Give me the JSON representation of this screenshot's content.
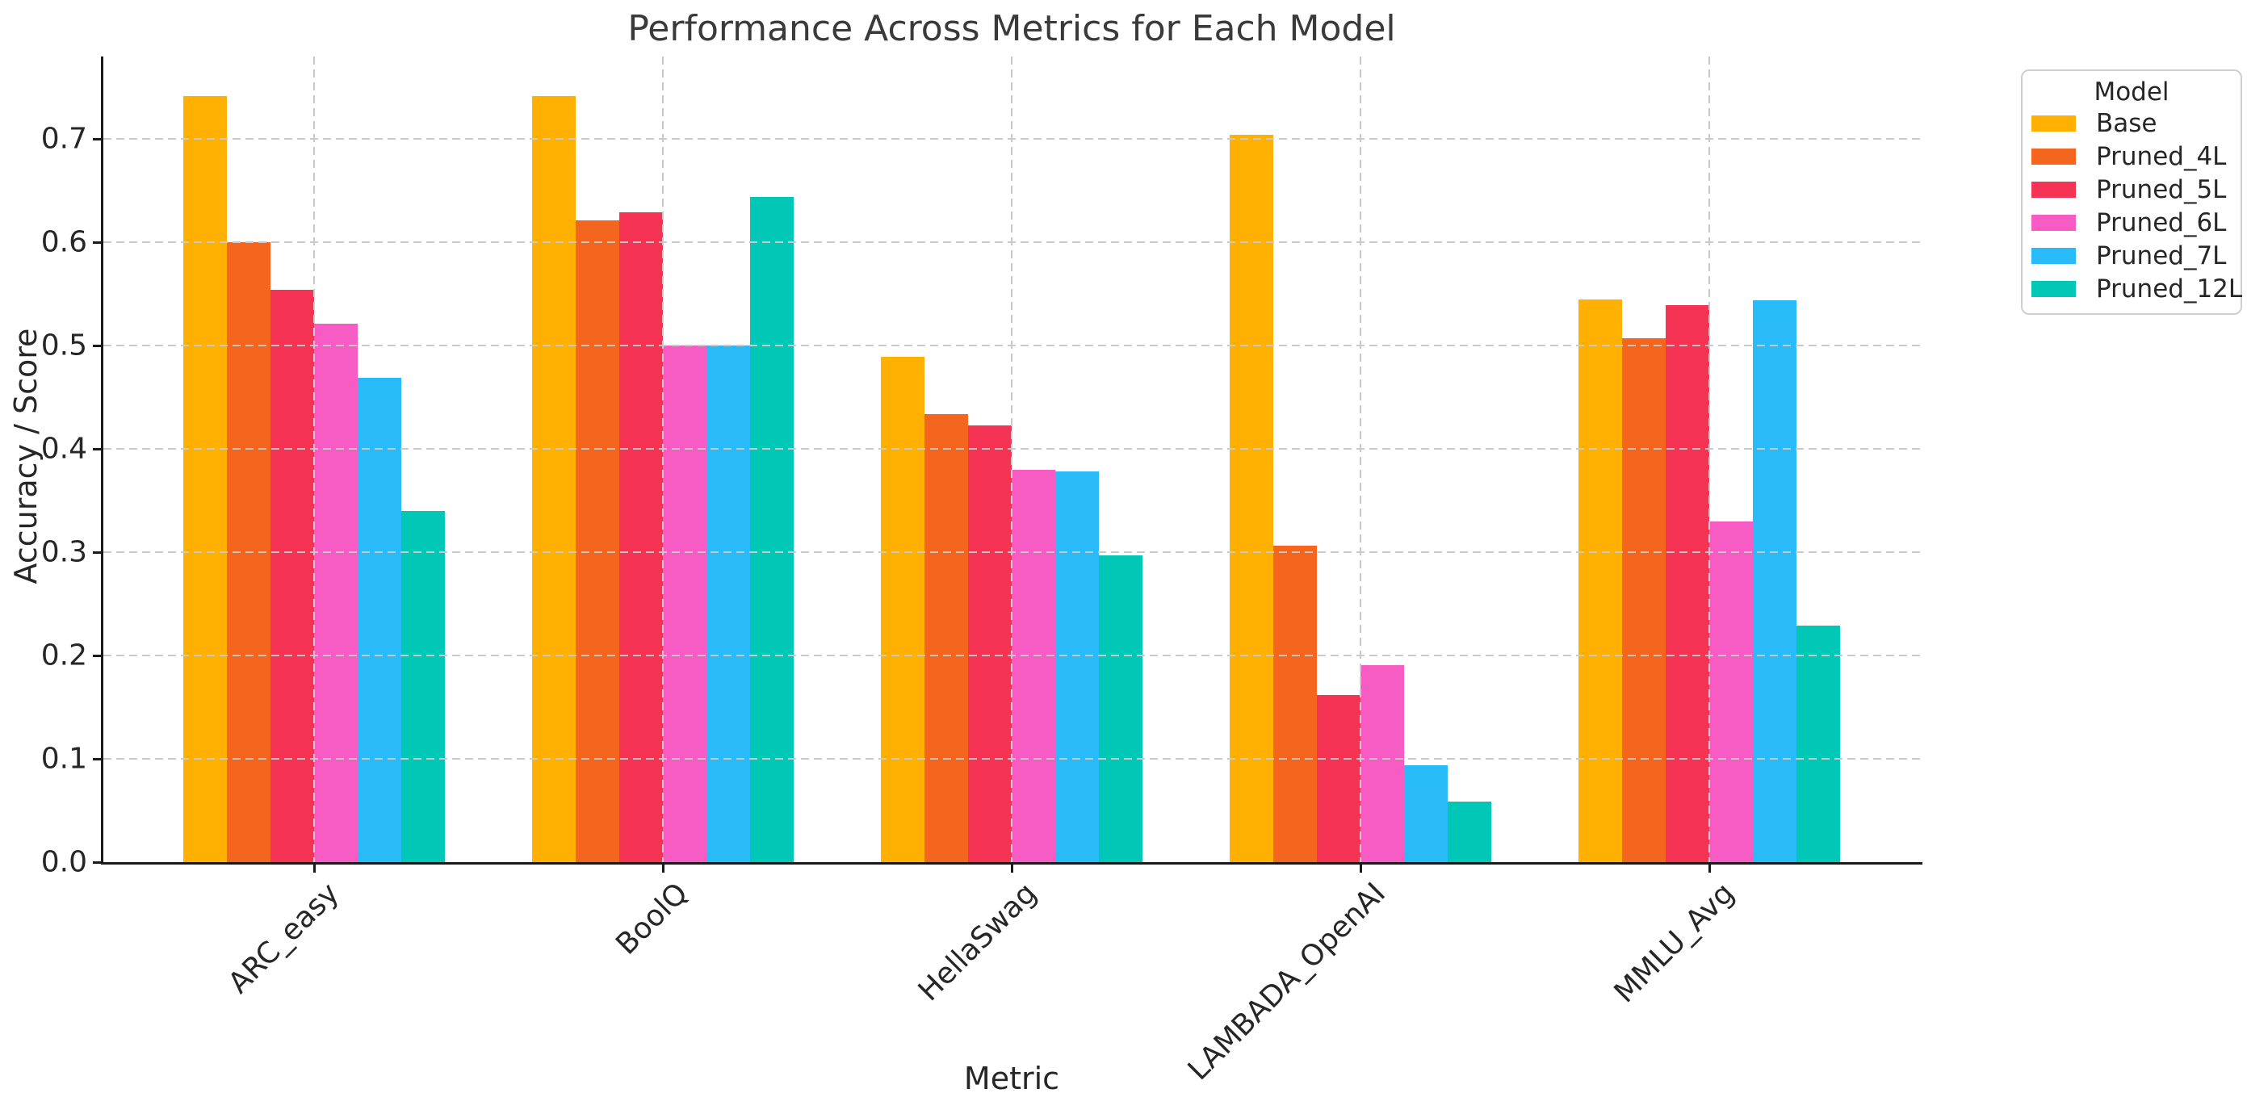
{
  "chart_data": {
    "type": "bar",
    "title": "Performance Across Metrics for Each Model",
    "xlabel": "Metric",
    "ylabel": "Accuracy / Score",
    "legend_title": "Model",
    "categories": [
      "ARC_easy",
      "BoolQ",
      "HellaSwag",
      "LAMBADA_OpenAI",
      "MMLU_Avg"
    ],
    "series": [
      {
        "name": "Base",
        "color": "#FFB000",
        "values": [
          0.742,
          0.742,
          0.489,
          0.704,
          0.545
        ]
      },
      {
        "name": "Pruned_4L",
        "color": "#F4661E",
        "values": [
          0.6,
          0.621,
          0.434,
          0.306,
          0.507
        ]
      },
      {
        "name": "Pruned_5L",
        "color": "#F43355",
        "values": [
          0.554,
          0.629,
          0.423,
          0.162,
          0.539
        ]
      },
      {
        "name": "Pruned_6L",
        "color": "#F65CC4",
        "values": [
          0.521,
          0.5,
          0.38,
          0.191,
          0.33
        ]
      },
      {
        "name": "Pruned_7L",
        "color": "#29BAF8",
        "values": [
          0.469,
          0.5,
          0.378,
          0.094,
          0.544
        ]
      },
      {
        "name": "Pruned_12L",
        "color": "#00C7B6",
        "values": [
          0.34,
          0.644,
          0.297,
          0.059,
          0.229
        ]
      }
    ],
    "ylim": [
      0,
      0.78
    ],
    "yticks": [
      "0.0",
      "0.1",
      "0.2",
      "0.3",
      "0.4",
      "0.5",
      "0.6",
      "0.7"
    ],
    "grid": {
      "horizontal": true,
      "vertical": true,
      "style": "dashed",
      "color": "#c9c9c9",
      "above_bars": true
    },
    "legend_position": "outside-upper-right",
    "axis_color": "#1a1a1a",
    "tick_label_color": "#262626"
  }
}
